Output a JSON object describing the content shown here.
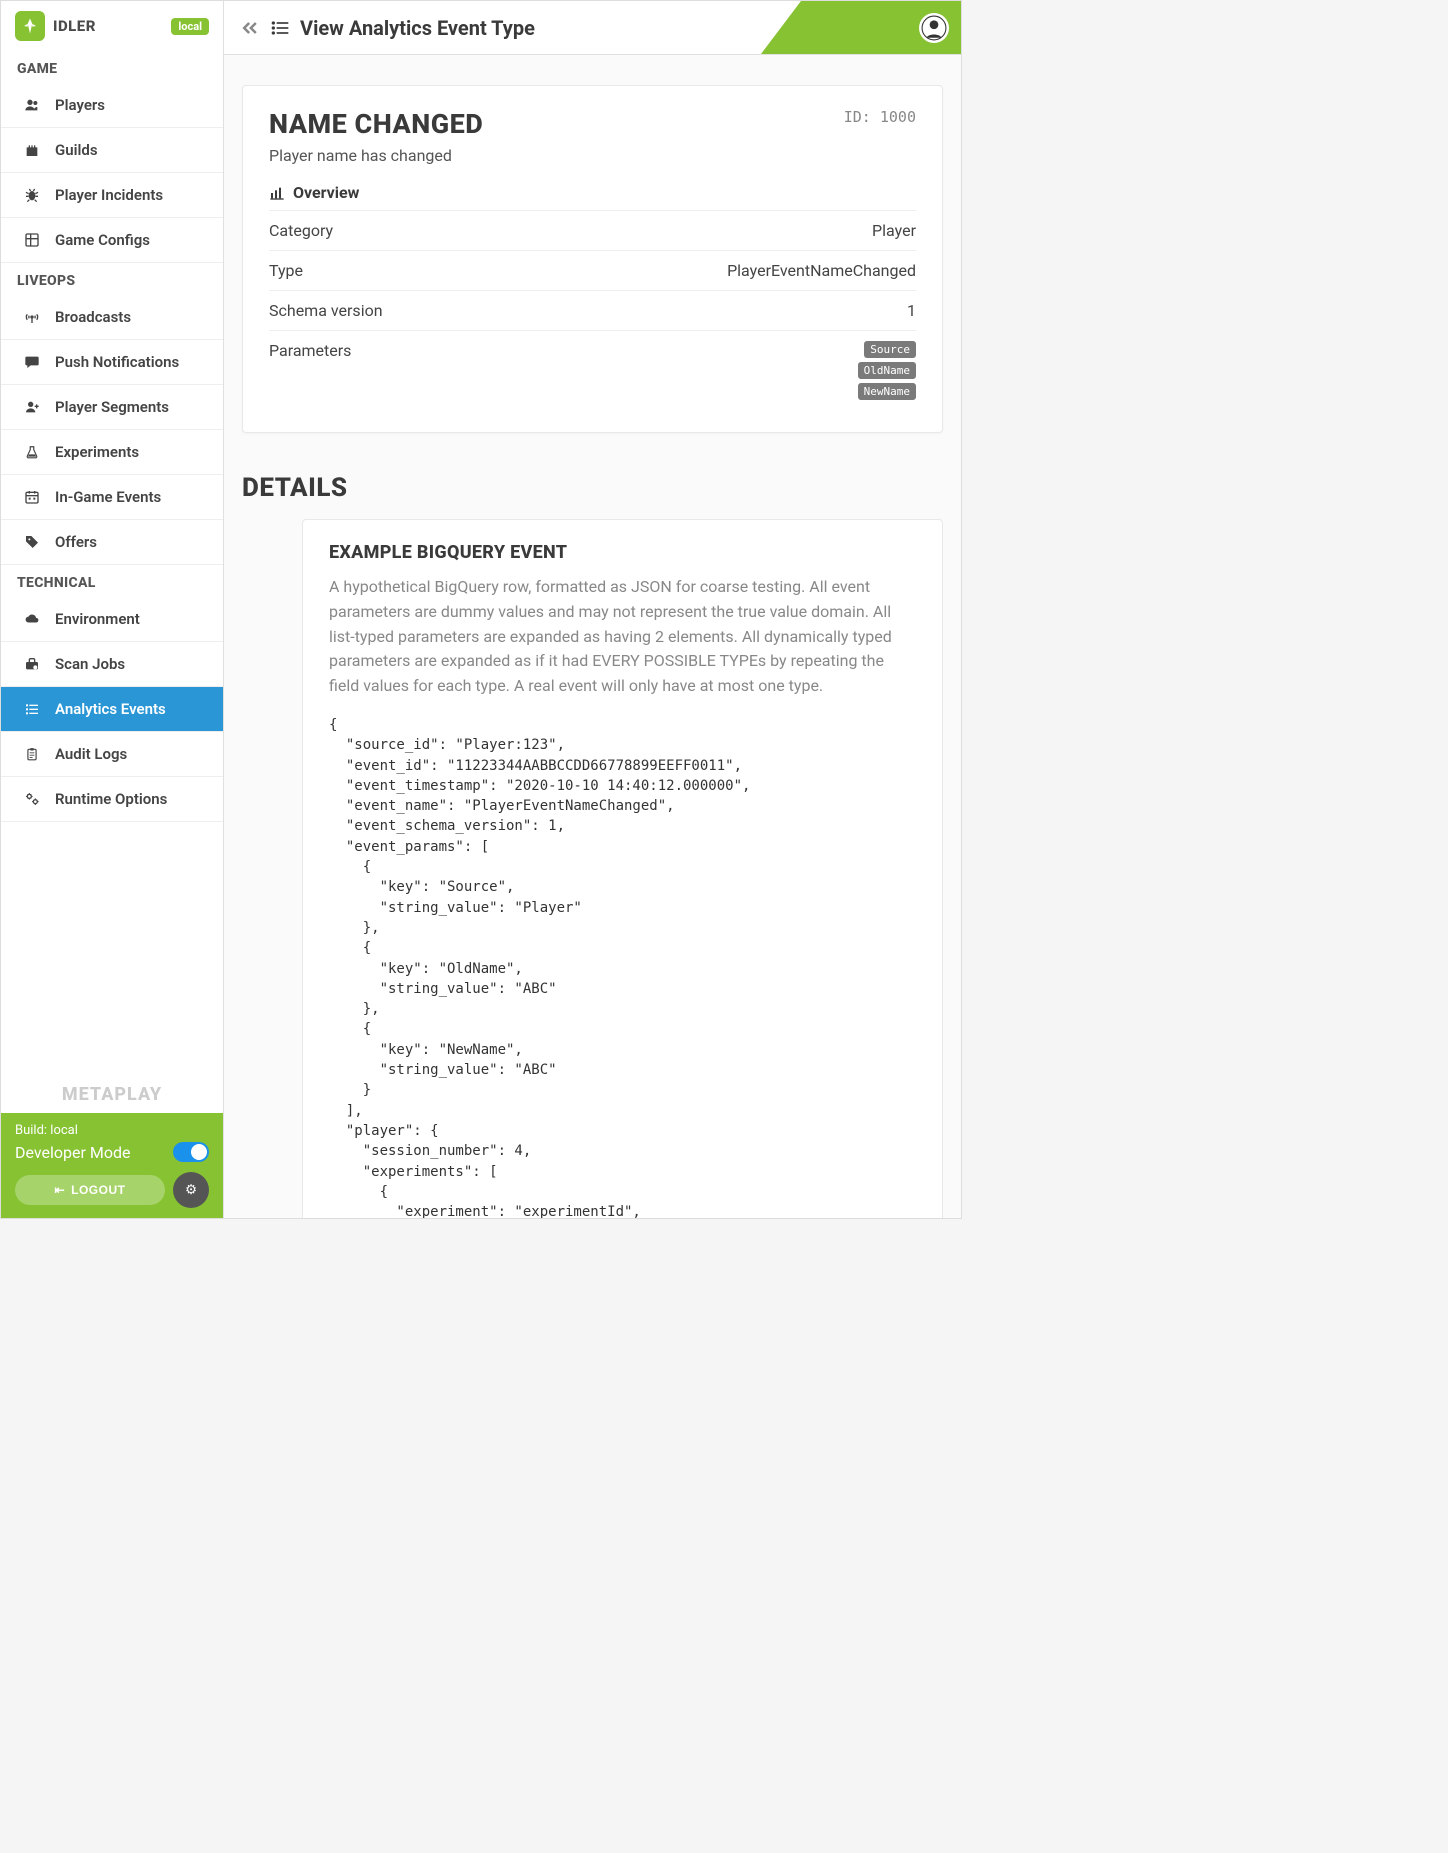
{
  "brand": {
    "name": "IDLER",
    "env_badge": "local",
    "metaplay": "METAPLAY"
  },
  "sidebar": {
    "sections": [
      {
        "title": "GAME",
        "items": [
          {
            "icon": "users",
            "label": "Players"
          },
          {
            "icon": "castle",
            "label": "Guilds"
          },
          {
            "icon": "bug",
            "label": "Player Incidents"
          },
          {
            "icon": "grid",
            "label": "Game Configs"
          }
        ]
      },
      {
        "title": "LIVEOPS",
        "items": [
          {
            "icon": "antenna",
            "label": "Broadcasts"
          },
          {
            "icon": "message",
            "label": "Push Notifications"
          },
          {
            "icon": "user-plus",
            "label": "Player Segments"
          },
          {
            "icon": "flask",
            "label": "Experiments"
          },
          {
            "icon": "calendar",
            "label": "In-Game Events"
          },
          {
            "icon": "tag",
            "label": "Offers"
          }
        ]
      },
      {
        "title": "TECHNICAL",
        "items": [
          {
            "icon": "cloud",
            "label": "Environment"
          },
          {
            "icon": "toolbox",
            "label": "Scan Jobs"
          },
          {
            "icon": "list-check",
            "label": "Analytics Events",
            "active": true
          },
          {
            "icon": "clipboard",
            "label": "Audit Logs"
          },
          {
            "icon": "gears",
            "label": "Runtime Options"
          }
        ]
      }
    ],
    "build_label": "Build: local",
    "dev_mode_label": "Developer Mode",
    "logout_label": "LOGOUT"
  },
  "header": {
    "page_title": "View Analytics Event Type"
  },
  "event": {
    "title": "NAME CHANGED",
    "id_label": "ID: 1000",
    "description": "Player name has changed",
    "overview_label": "Overview",
    "rows": {
      "category": {
        "label": "Category",
        "value": "Player"
      },
      "type": {
        "label": "Type",
        "value": "PlayerEventNameChanged"
      },
      "schema": {
        "label": "Schema version",
        "value": "1"
      },
      "params": {
        "label": "Parameters",
        "tags": [
          "Source",
          "OldName",
          "NewName"
        ]
      }
    }
  },
  "details": {
    "heading": "DETAILS",
    "example_title": "EXAMPLE BIGQUERY EVENT",
    "example_desc": "A hypothetical BigQuery row, formatted as JSON for coarse testing. All event parameters are dummy values and may not represent the true value domain. All list-typed parameters are expanded as having 2 elements. All dynamically typed parameters are expanded as if it had EVERY POSSIBLE TYPEs by repeating the field values for each type. A real event will only have at most one type.",
    "code": "{\n  \"source_id\": \"Player:123\",\n  \"event_id\": \"11223344AABBCCDD66778899EEFF0011\",\n  \"event_timestamp\": \"2020-10-10 14:40:12.000000\",\n  \"event_name\": \"PlayerEventNameChanged\",\n  \"event_schema_version\": 1,\n  \"event_params\": [\n    {\n      \"key\": \"Source\",\n      \"string_value\": \"Player\"\n    },\n    {\n      \"key\": \"OldName\",\n      \"string_value\": \"ABC\"\n    },\n    {\n      \"key\": \"NewName\",\n      \"string_value\": \"ABC\"\n    }\n  ],\n  \"player\": {\n    \"session_number\": 4,\n    \"experiments\": [\n      {\n        \"experiment\": \"experimentId\",\n        \"variant\": \"variantId\"\n      }"
  },
  "colors": {
    "accent": "#86c232",
    "active": "#2a96d6"
  }
}
